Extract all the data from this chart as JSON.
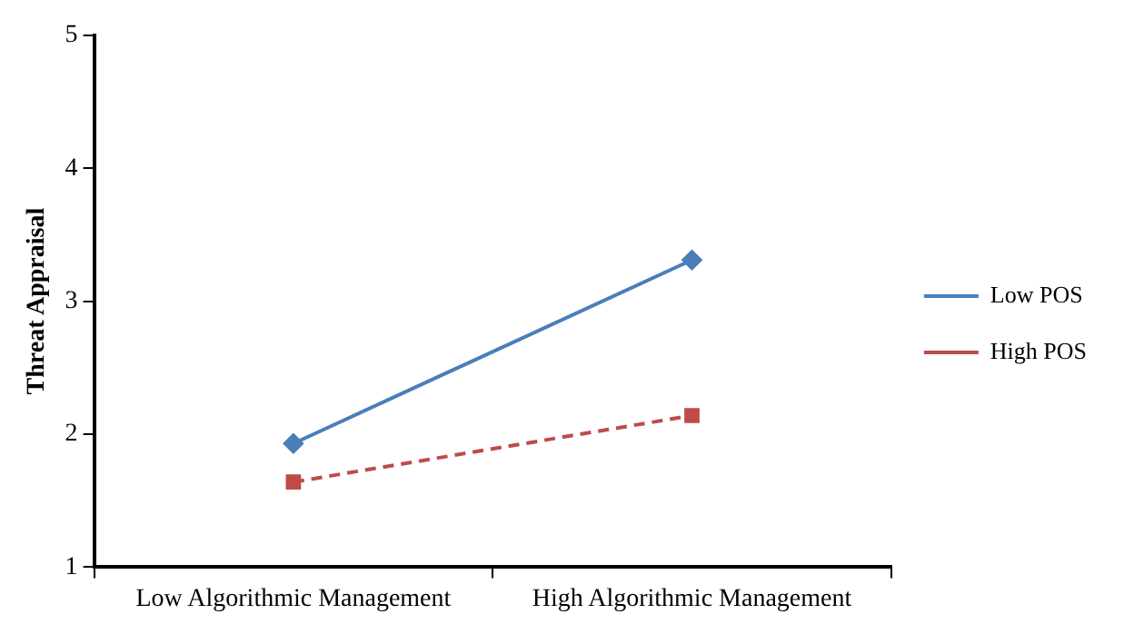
{
  "chart_data": {
    "type": "line",
    "ylabel": "Threat Appraisal",
    "categories": [
      "Low Algorithmic Management",
      "High Algorithmic Management"
    ],
    "series": [
      {
        "name": "Low POS",
        "color": "#4a7ebb",
        "values": [
          1.93,
          3.31
        ],
        "marker": "diamond",
        "line_style": "solid"
      },
      {
        "name": "High POS",
        "color": "#be4b48",
        "values": [
          1.64,
          2.14
        ],
        "marker": "square",
        "line_style": "dashed"
      }
    ],
    "ylim": [
      1,
      5
    ],
    "yticks": [
      1,
      2,
      3,
      4,
      5
    ],
    "grid": false,
    "legend": "right"
  }
}
